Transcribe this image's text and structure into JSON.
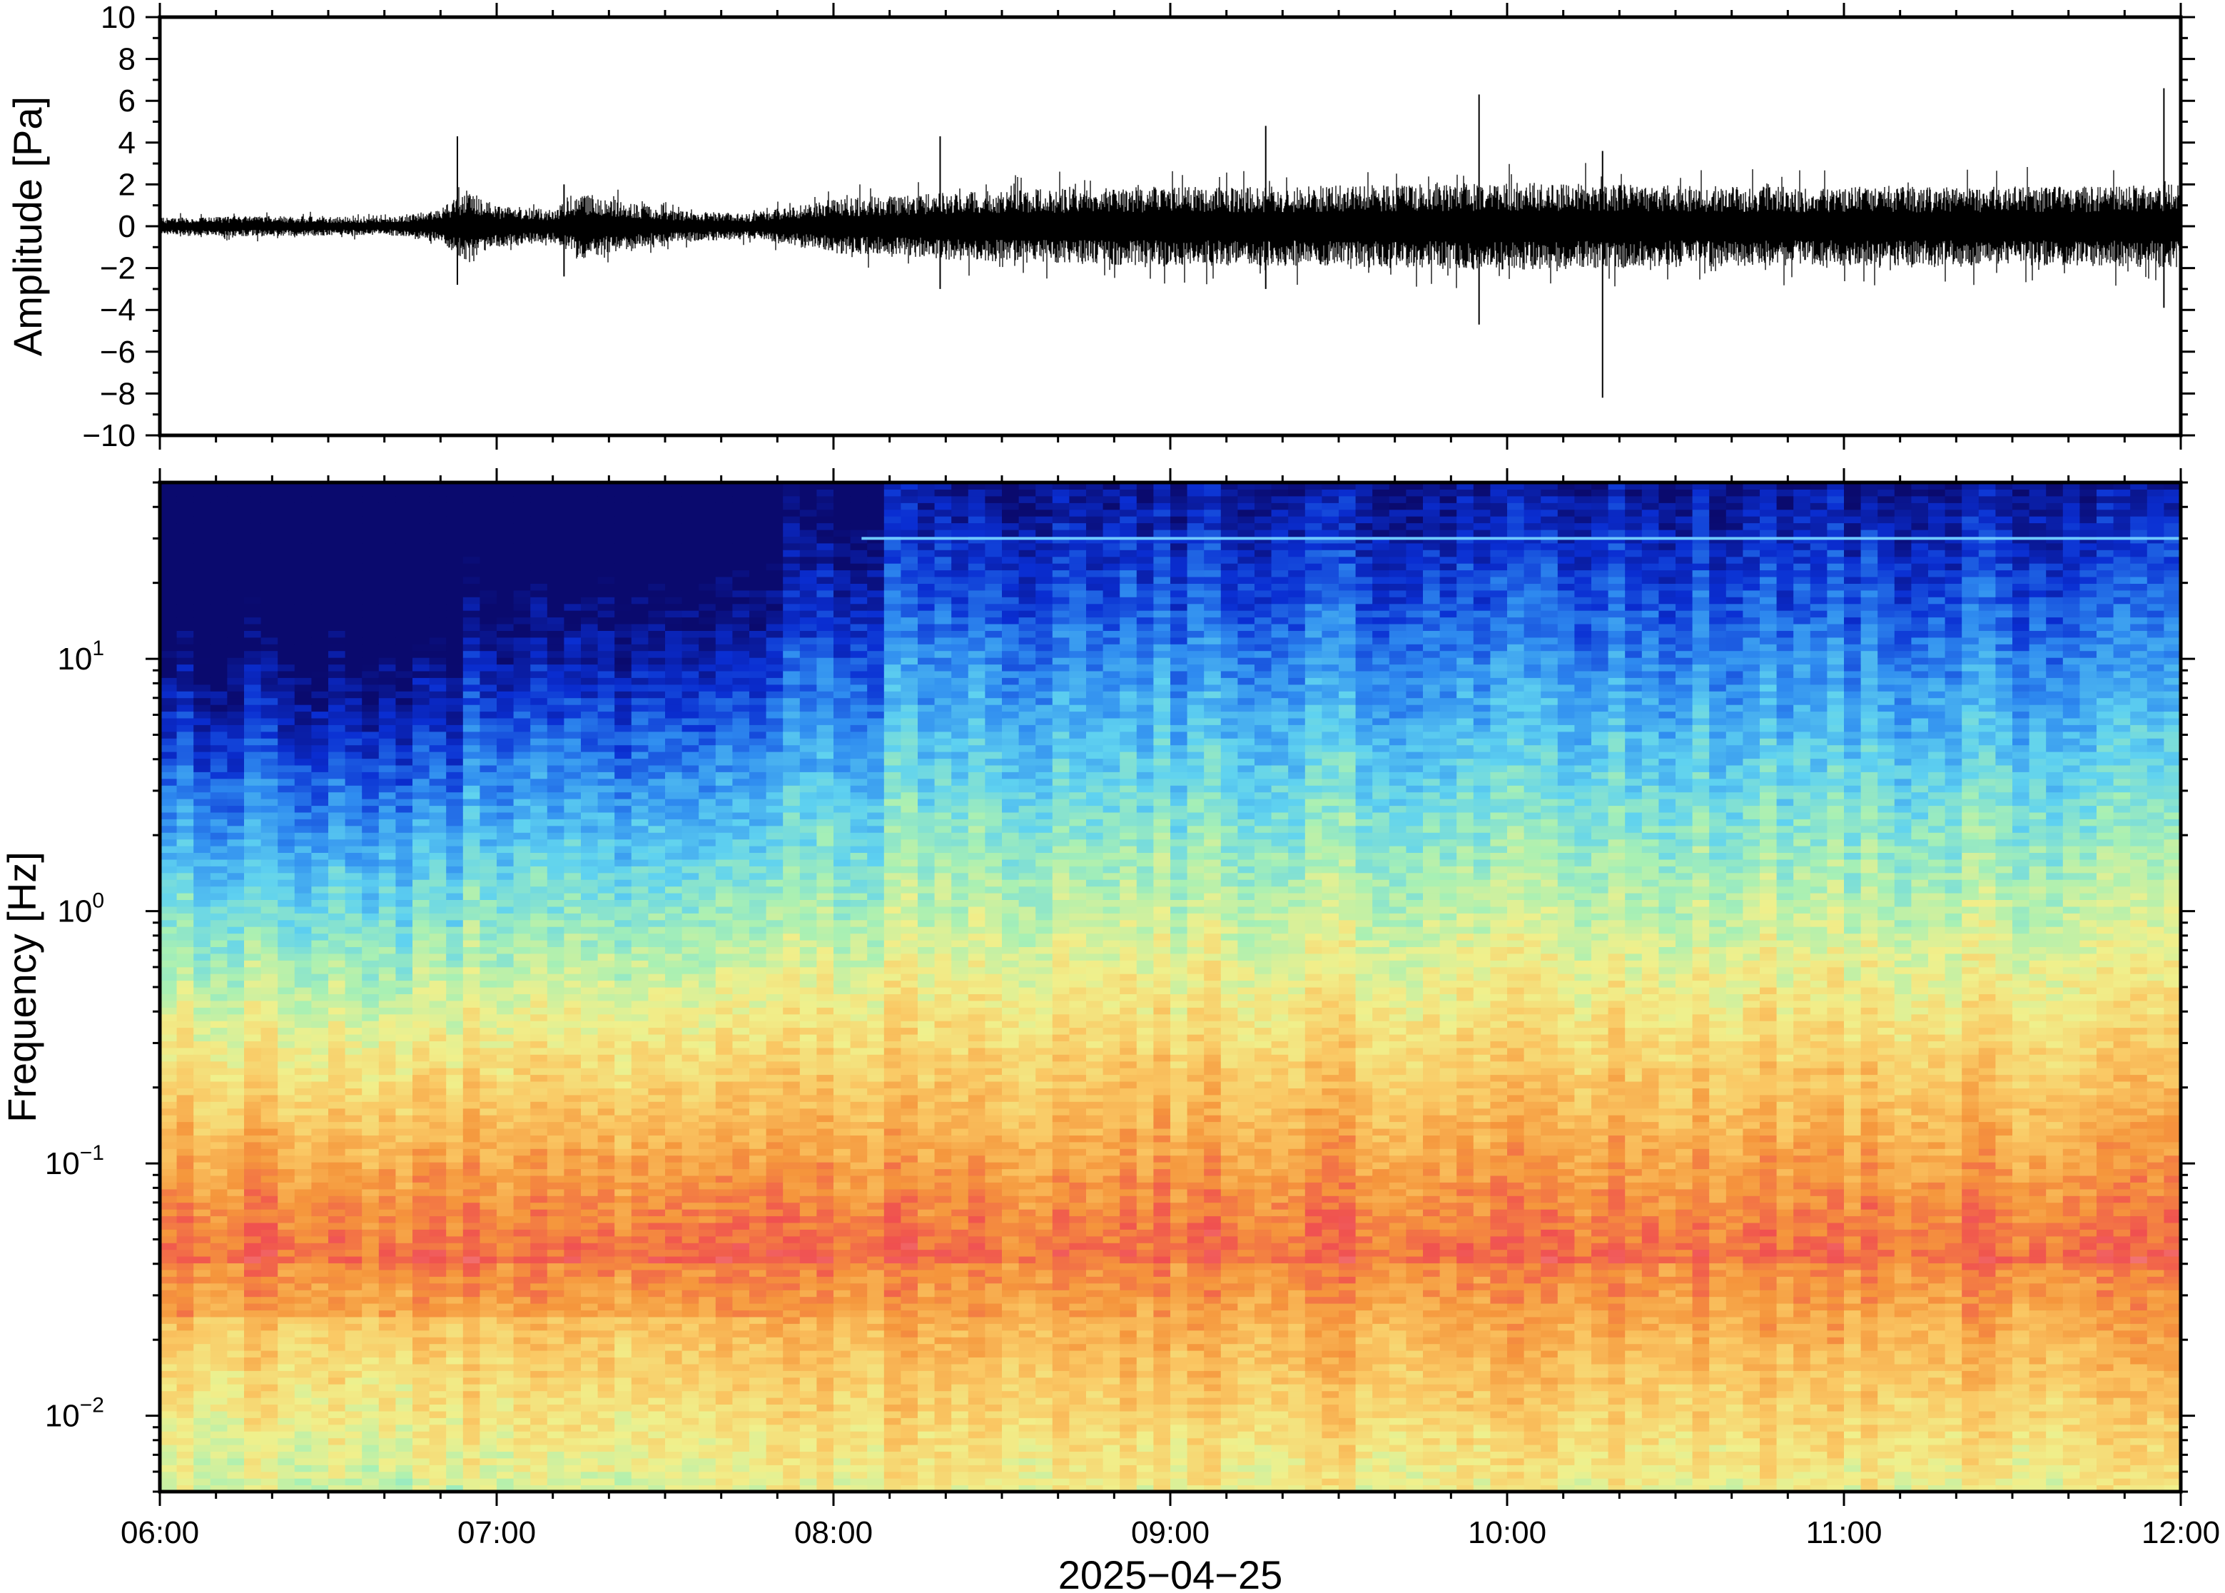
{
  "chart_data": [
    {
      "type": "line",
      "panel": "waveform",
      "title": "",
      "ylabel": "Amplitude [Pa]",
      "xlabel": "",
      "xlim": [
        "06:00",
        "12:00"
      ],
      "ylim": [
        -10,
        10
      ],
      "y_ticks": [
        10,
        8,
        6,
        4,
        2,
        0,
        -2,
        -4,
        -6,
        -8,
        -10
      ],
      "y_tick_labels": [
        "10",
        "8",
        "6",
        "4",
        "2",
        "0",
        "−2",
        "−4",
        "−6",
        "−8",
        "−10"
      ],
      "series": [
        {
          "color": "#000000",
          "envelope": {
            "x": [
              "06:00",
              "06:20",
              "06:40",
              "06:50",
              "06:55",
              "07:00",
              "07:10",
              "07:15",
              "07:30",
              "07:45",
              "08:00",
              "08:20",
              "08:40",
              "09:00",
              "09:20",
              "09:40",
              "10:00",
              "10:20",
              "10:40",
              "11:00",
              "11:20",
              "11:40",
              "12:00"
            ],
            "amplitude": [
              0.4,
              0.5,
              0.4,
              0.8,
              1.8,
              1.0,
              0.8,
              1.6,
              0.8,
              0.6,
              1.3,
              1.6,
              1.8,
              1.9,
              1.9,
              2.0,
              2.1,
              2.0,
              1.9,
              1.9,
              1.9,
              1.9,
              2.0
            ]
          },
          "spikes": [
            {
              "x": "06:53",
              "max": 4.3,
              "min": -2.8
            },
            {
              "x": "07:12",
              "max": 2.0,
              "min": -2.4
            },
            {
              "x": "08:19",
              "max": 4.3,
              "min": -3.0
            },
            {
              "x": "09:17",
              "max": 4.8,
              "min": -3.0
            },
            {
              "x": "09:55",
              "max": 6.3,
              "min": -4.7
            },
            {
              "x": "10:17",
              "max": 3.6,
              "min": -8.2
            },
            {
              "x": "11:57",
              "max": 6.6,
              "min": -3.9
            }
          ]
        }
      ]
    },
    {
      "type": "heatmap",
      "panel": "spectrogram",
      "title": "",
      "ylabel": "Frequency [Hz]",
      "xlabel": "2025−04−25",
      "xlim": [
        "06:00",
        "12:00"
      ],
      "ylim": [
        0.005,
        50
      ],
      "y_scale": "log",
      "y_ticks": [
        0.01,
        0.1,
        1,
        10
      ],
      "y_tick_labels": [
        {
          "base": "10",
          "exp": "−2"
        },
        {
          "base": "10",
          "exp": "−1"
        },
        {
          "base": "10",
          "exp": "0"
        },
        {
          "base": "10",
          "exp": "1"
        }
      ],
      "x_ticks": [
        "06:00",
        "07:00",
        "08:00",
        "09:00",
        "10:00",
        "11:00",
        "12:00"
      ],
      "colormap": [
        "#0a0a6e",
        "#0a2ed2",
        "#2f8cf0",
        "#5fd2f0",
        "#a8f0b4",
        "#f0f08c",
        "#fac864",
        "#f5963c",
        "#f05050",
        "#f5a0a0"
      ],
      "colorbar": "none",
      "time_segments": [
        {
          "start": "06:00",
          "end": "06:55",
          "noise_level": 0.25
        },
        {
          "start": "06:55",
          "end": "07:50",
          "noise_level": 0.45
        },
        {
          "start": "07:50",
          "end": "08:10",
          "noise_level": 0.7
        },
        {
          "start": "08:10",
          "end": "12:00",
          "noise_level": 0.9
        }
      ],
      "narrowband_line": {
        "frequency_hz": 30,
        "start": "08:05",
        "end": "12:00"
      }
    }
  ]
}
